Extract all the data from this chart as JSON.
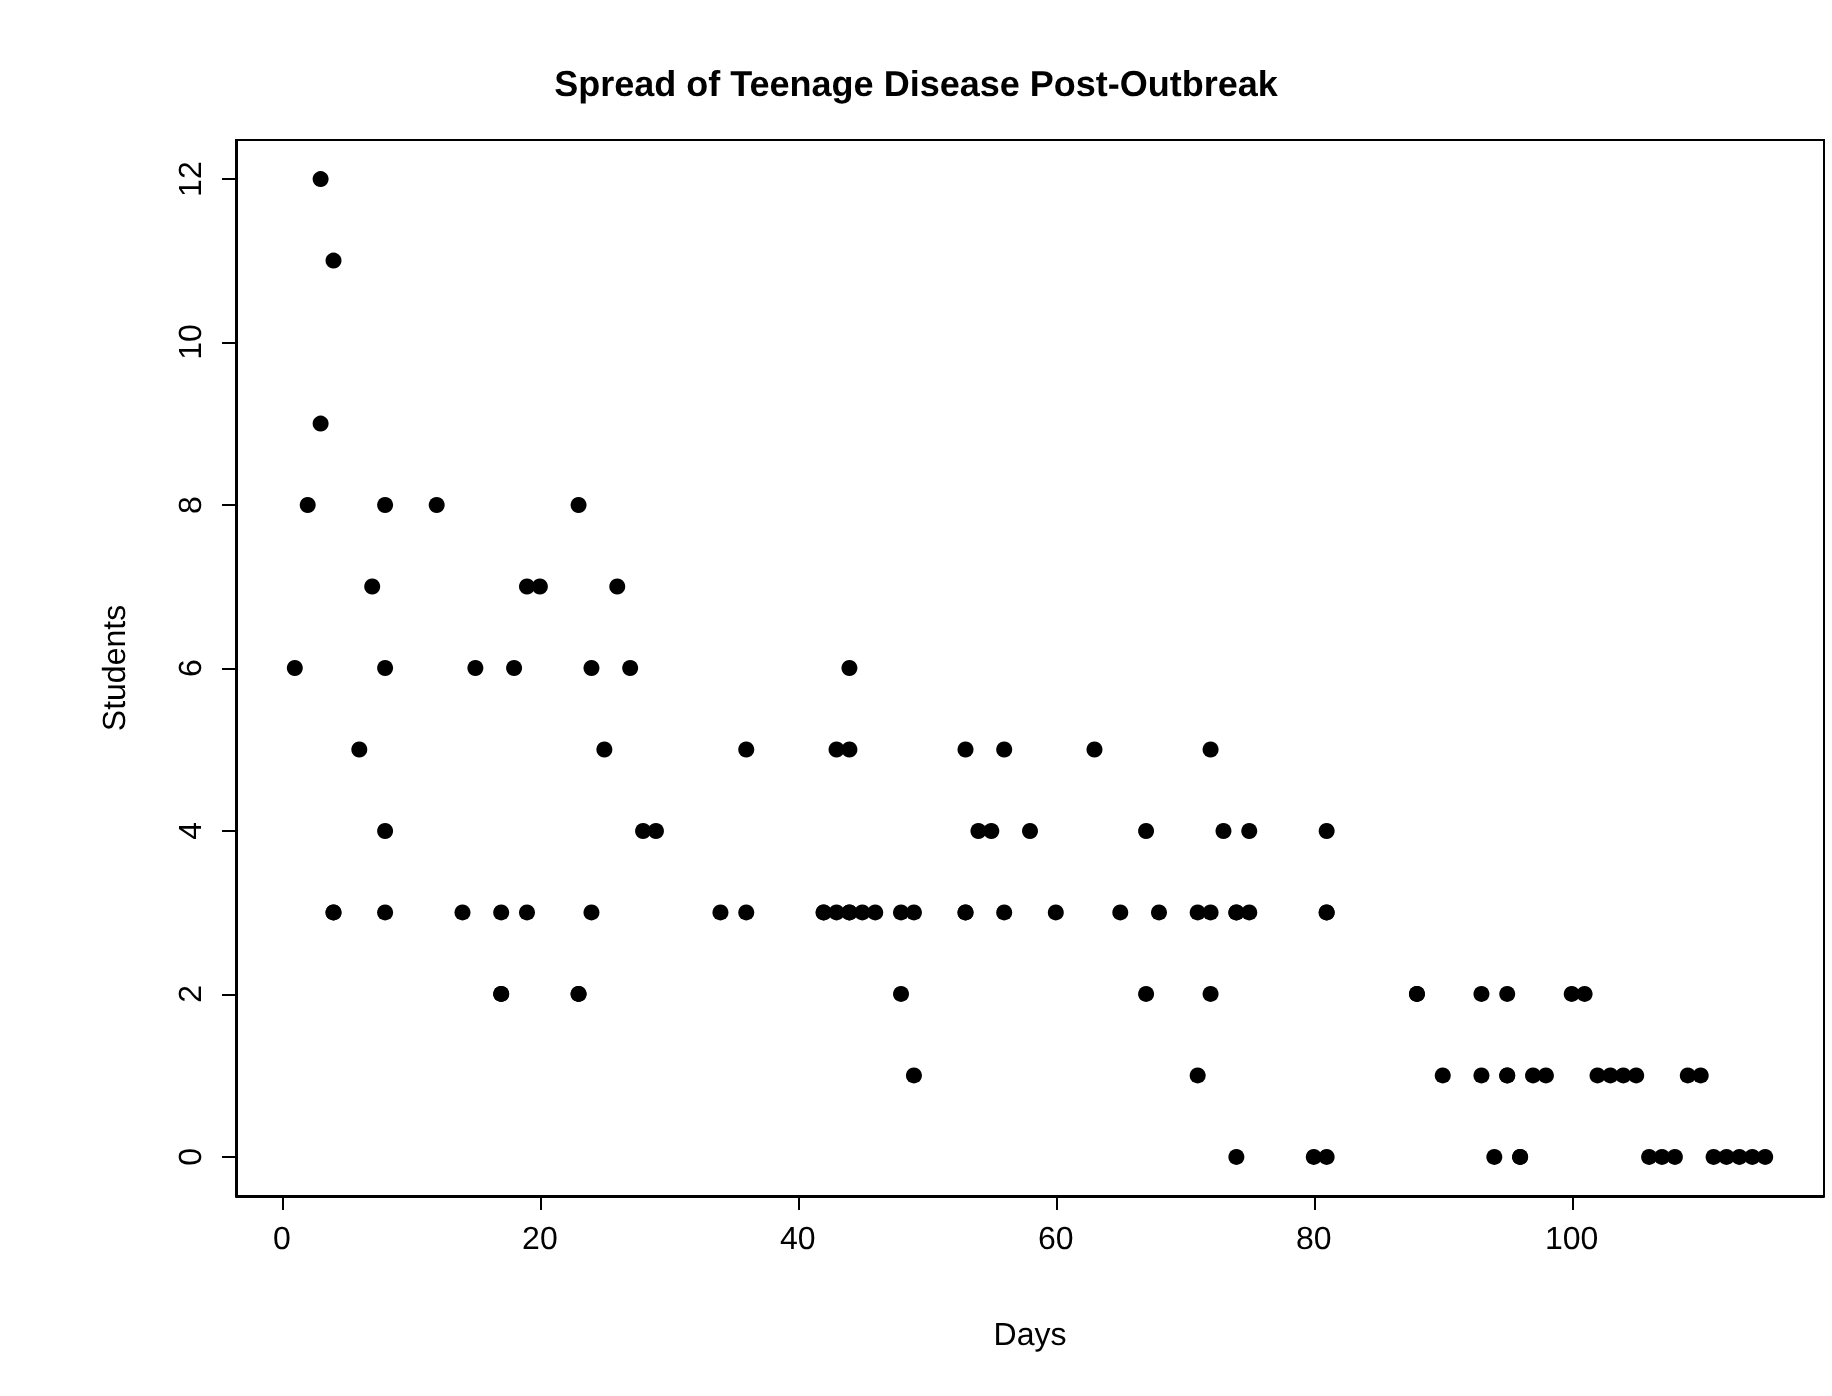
{
  "chart_data": {
    "type": "scatter",
    "title": "Spread of Teenage Disease Post-Outbreak",
    "xlabel": "Days",
    "ylabel": "Students",
    "x": [
      1,
      2,
      3,
      3,
      4,
      4,
      4,
      6,
      7,
      8,
      8,
      8,
      8,
      12,
      14,
      15,
      17,
      17,
      17,
      18,
      19,
      19,
      20,
      23,
      23,
      23,
      24,
      24,
      25,
      26,
      27,
      28,
      29,
      34,
      36,
      36,
      42,
      42,
      43,
      43,
      44,
      44,
      44,
      44,
      45,
      46,
      48,
      48,
      49,
      49,
      53,
      53,
      53,
      54,
      55,
      56,
      56,
      58,
      60,
      63,
      65,
      67,
      67,
      68,
      71,
      71,
      72,
      72,
      72,
      73,
      74,
      74,
      74,
      75,
      75,
      80,
      81,
      81,
      81,
      81,
      88,
      88,
      90,
      93,
      93,
      94,
      95,
      95,
      95,
      96,
      96,
      97,
      98,
      100,
      101,
      102,
      103,
      104,
      105,
      106,
      107,
      108,
      109,
      110,
      111,
      112,
      113,
      114,
      115
    ],
    "values": [
      6,
      8,
      12,
      9,
      3,
      3,
      11,
      5,
      7,
      3,
      8,
      4,
      6,
      8,
      3,
      6,
      3,
      2,
      2,
      6,
      3,
      7,
      7,
      2,
      2,
      8,
      3,
      6,
      5,
      7,
      6,
      4,
      4,
      3,
      3,
      5,
      3,
      3,
      3,
      5,
      3,
      5,
      6,
      3,
      3,
      3,
      3,
      2,
      3,
      1,
      3,
      3,
      5,
      4,
      4,
      3,
      5,
      4,
      3,
      5,
      3,
      4,
      2,
      3,
      3,
      1,
      3,
      2,
      5,
      4,
      3,
      0,
      3,
      3,
      4,
      0,
      3,
      3,
      4,
      0,
      2,
      2,
      1,
      1,
      2,
      0,
      2,
      1,
      1,
      0,
      0,
      1,
      1,
      2,
      2,
      1,
      1,
      1,
      1,
      0,
      0,
      0,
      1,
      1,
      0,
      0,
      0,
      0,
      0
    ],
    "color": "#000000",
    "marker": "circle",
    "xlim": [
      -3.56,
      119.56
    ],
    "ylim": [
      -0.48,
      12.48
    ],
    "xticks": [
      0,
      20,
      40,
      60,
      80,
      100
    ],
    "yticks": [
      0,
      2,
      4,
      6,
      8,
      10,
      12
    ],
    "grid": false
  }
}
